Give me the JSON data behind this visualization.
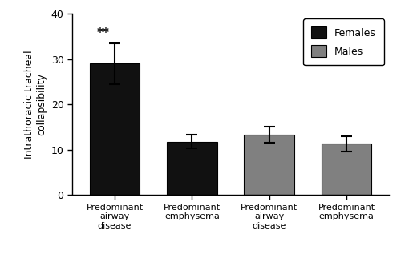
{
  "bars": [
    {
      "label": "Predominant\nairway\ndisease",
      "value": 29.0,
      "error": 4.5,
      "color": "#111111",
      "group": "Females"
    },
    {
      "label": "Predominant\nemphysema",
      "value": 11.8,
      "error": 1.5,
      "color": "#111111",
      "group": "Females"
    },
    {
      "label": "Predominant\nairway\ndisease",
      "value": 13.3,
      "error": 1.8,
      "color": "#808080",
      "group": "Males"
    },
    {
      "label": "Predominant\nemphysema",
      "value": 11.3,
      "error": 1.7,
      "color": "#808080",
      "group": "Males"
    }
  ],
  "ylabel": "Intrathoracic tracheal\ncollapsibility",
  "ylim": [
    0,
    40
  ],
  "yticks": [
    0,
    10,
    20,
    30,
    40
  ],
  "annotation": "**",
  "legend_labels": [
    "Females",
    "Males"
  ],
  "legend_colors": [
    "#111111",
    "#808080"
  ],
  "bar_width": 0.65,
  "background_color": "#ffffff",
  "edge_color": "#000000"
}
